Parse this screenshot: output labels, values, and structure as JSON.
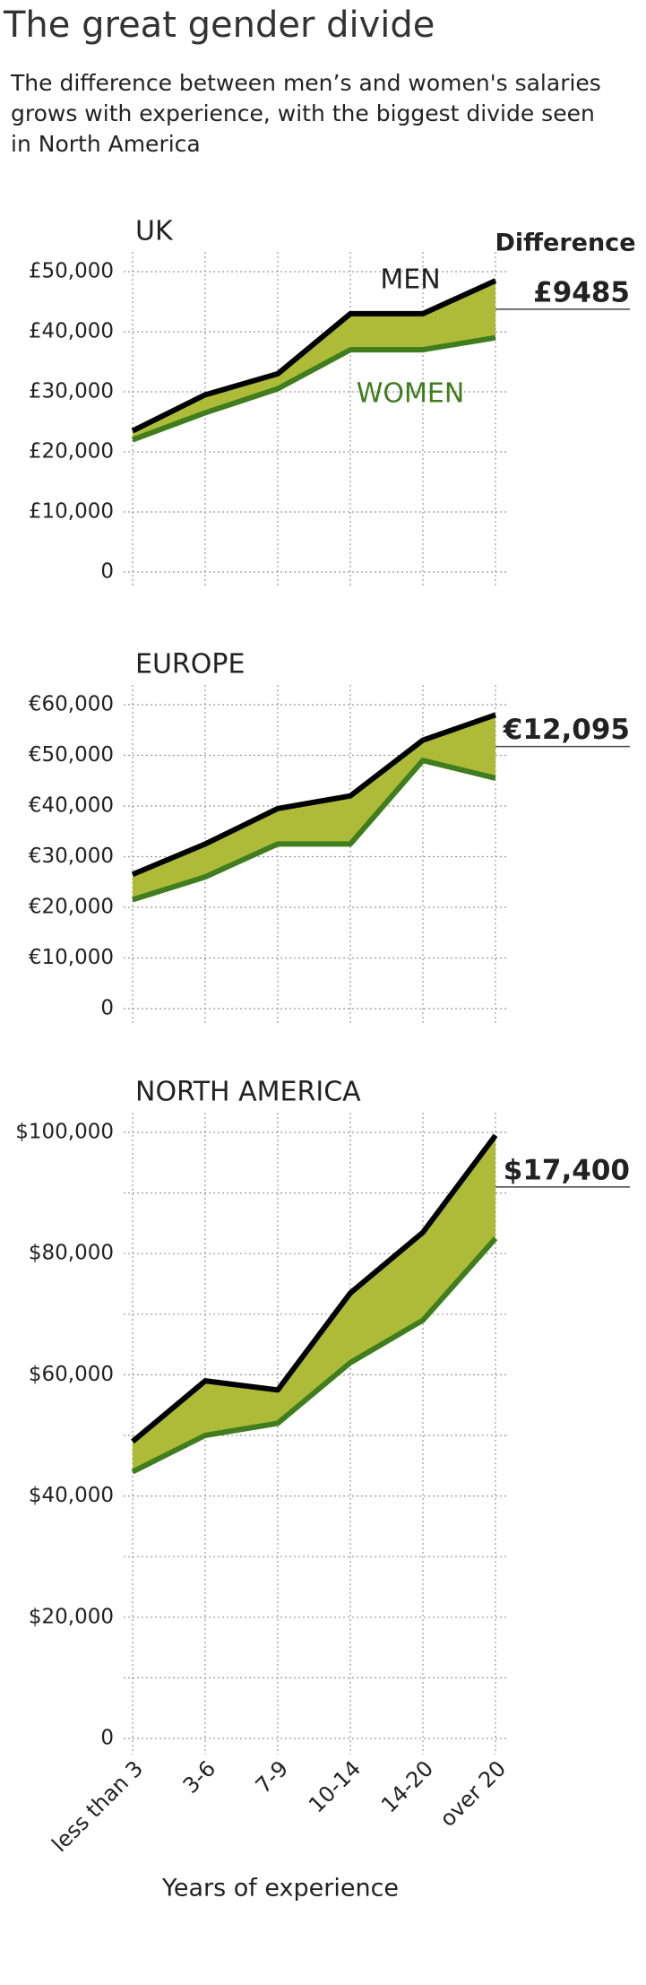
{
  "header": {
    "title": "The great gender divide",
    "subtitle": [
      "The difference between men’s and women's salaries",
      "grows with experience, with the biggest divide seen",
      "in North America"
    ]
  },
  "chart_data": [
    {
      "type": "line",
      "title": "UK",
      "fill_between": "#adbb38",
      "ylim": [
        0,
        50000
      ],
      "yticks": [
        0,
        {
          "value": 10000,
          "label": "£10,000"
        },
        {
          "value": 20000,
          "label": "£20,000"
        },
        {
          "value": 30000,
          "label": "£30,000"
        },
        {
          "value": 40000,
          "label": "£40,000"
        },
        {
          "value": 50000,
          "label": "£50,000"
        }
      ],
      "series": [
        {
          "name": "MEN",
          "color": "#000000",
          "label_color": "#222222",
          "values": [
            23500,
            29500,
            33000,
            43000,
            43000,
            48500
          ]
        },
        {
          "name": "WOMEN",
          "color": "#3f7d1e",
          "label_color": "#3f7d1e",
          "values": [
            22000,
            26500,
            30500,
            37000,
            37000,
            39000
          ]
        }
      ],
      "difference_title": "Difference",
      "difference_label": "£9485"
    },
    {
      "type": "line",
      "title": "EUROPE",
      "fill_between": "#adbb38",
      "ylim": [
        0,
        60000
      ],
      "yticks": [
        0,
        {
          "value": 10000,
          "label": "€10,000"
        },
        {
          "value": 20000,
          "label": "€20,000"
        },
        {
          "value": 30000,
          "label": "€30,000"
        },
        {
          "value": 40000,
          "label": "€40,000"
        },
        {
          "value": 50000,
          "label": "€50,000"
        },
        {
          "value": 60000,
          "label": "€60,000"
        }
      ],
      "series": [
        {
          "color": "#000000",
          "values": [
            26500,
            32500,
            39500,
            42000,
            53000,
            58000
          ]
        },
        {
          "color": "#3f7d1e",
          "values": [
            21500,
            26000,
            32500,
            32500,
            49000,
            45500
          ]
        }
      ],
      "difference_label": "€12,095"
    },
    {
      "type": "line",
      "title": "NORTH AMERICA",
      "fill_between": "#adbb38",
      "categories": [
        "less than 3",
        "3-6",
        "7-9",
        "10-14",
        "14-20",
        "over 20"
      ],
      "xlabel": "Years of experience",
      "ylim": [
        0,
        100000
      ],
      "yticks": [
        0,
        {
          "value": 20000,
          "label": "$20,000"
        },
        {
          "value": 40000,
          "label": "$40,000"
        },
        {
          "value": 60000,
          "label": "$60,000"
        },
        {
          "value": 80000,
          "label": "$80,000"
        },
        {
          "value": 100000,
          "label": "$100,000"
        }
      ],
      "yticks_minor": [
        10000,
        30000,
        50000,
        70000,
        90000
      ],
      "series": [
        {
          "color": "#000000",
          "values": [
            49000,
            59000,
            57500,
            73500,
            83500,
            99500
          ]
        },
        {
          "color": "#3f7d1e",
          "values": [
            44000,
            50000,
            52000,
            62000,
            69000,
            82500
          ]
        }
      ],
      "difference_label": "$17,400"
    }
  ]
}
